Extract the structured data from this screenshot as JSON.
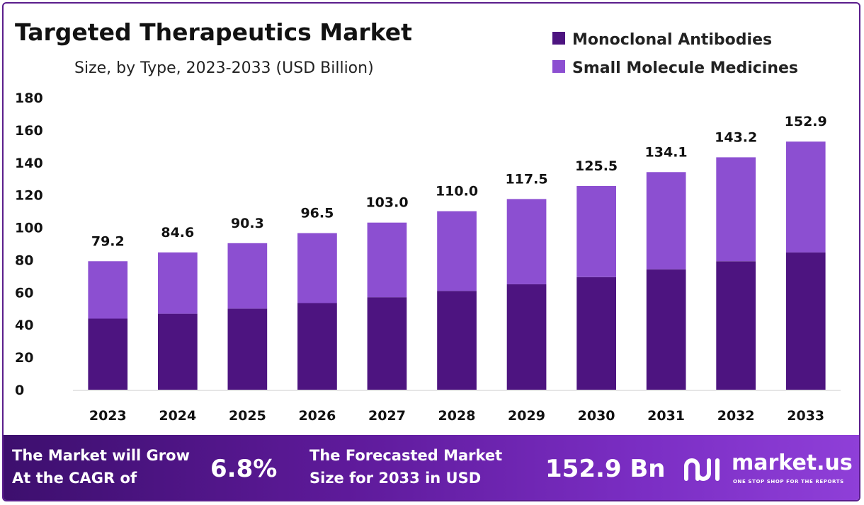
{
  "chart_data": {
    "type": "bar",
    "stacked": true,
    "title": "Targeted Therapeutics Market",
    "subtitle": "Size, by Type, 2023-2033 (USD Billion)",
    "categories": [
      "2023",
      "2024",
      "2025",
      "2026",
      "2027",
      "2028",
      "2029",
      "2030",
      "2031",
      "2032",
      "2033"
    ],
    "series": [
      {
        "name": "Monoclonal Antibodies",
        "color": "#4d1480",
        "values": [
          43.8,
          46.8,
          50.0,
          53.4,
          57.0,
          60.9,
          65.0,
          69.4,
          74.2,
          79.2,
          84.6
        ]
      },
      {
        "name": "Small Molecule Medicines",
        "color": "#8c4fd1",
        "values": [
          35.4,
          37.8,
          40.3,
          43.1,
          46.0,
          49.1,
          52.5,
          56.1,
          59.9,
          64.0,
          68.3
        ]
      }
    ],
    "totals": [
      79.2,
      84.6,
      90.3,
      96.5,
      103.0,
      110.0,
      117.5,
      125.5,
      134.1,
      143.2,
      152.9
    ],
    "total_labels": [
      "79.2",
      "84.6",
      "90.3",
      "96.5",
      "103.0",
      "110.0",
      "117.5",
      "125.5",
      "134.1",
      "143.2",
      "152.9"
    ],
    "yticks": [
      0,
      20,
      40,
      60,
      80,
      100,
      120,
      140,
      160,
      180
    ],
    "ylim": [
      0,
      180
    ],
    "legend_position": "top-right",
    "grid": false
  },
  "footer": {
    "cagr_line1": "The Market will Grow",
    "cagr_line2": "At the CAGR of",
    "cagr_value": "6.8%",
    "forecast_line1": "The Forecasted Market",
    "forecast_line2": "Size for 2033 in USD",
    "forecast_value": "152.9 Bn",
    "brand_name": "market.us",
    "brand_tagline": "ONE STOP SHOP FOR THE REPORTS",
    "brand_icon": "market-us-logo-icon"
  }
}
